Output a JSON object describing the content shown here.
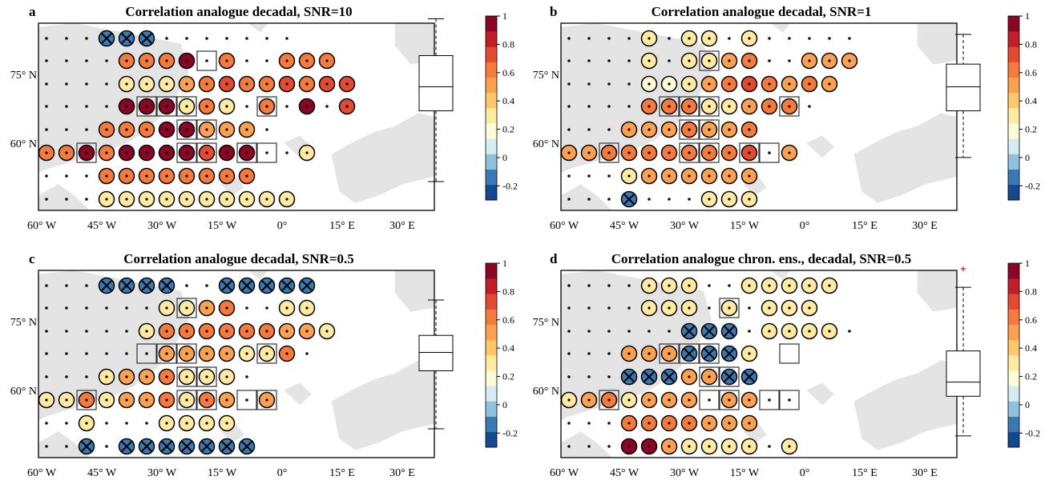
{
  "colors": {
    "land": "#e4e4e4",
    "colormap": [
      "#15488e",
      "#3a7ab3",
      "#8fc1dd",
      "#d7ebf2",
      "#fbfbd6",
      "#feeaa0",
      "#fdc86a",
      "#fca052",
      "#f57a3e",
      "#e24b31",
      "#c11e2a",
      "#8a0526"
    ]
  },
  "xticks": [
    "60° W",
    "45° W",
    "30° W",
    "15° W",
    "0°",
    "15° E",
    "30° E"
  ],
  "yticks": [
    "75° N",
    "60° N"
  ],
  "colorbar": {
    "ticks": [
      "1",
      "0.8",
      "0.6",
      "0.4",
      "0.2",
      "0",
      "-0.2"
    ],
    "range": [
      -0.3,
      1
    ]
  },
  "chart_data": [
    {
      "type": "heatmap",
      "panel": "a",
      "title": "Correlation analogue decadal, SNR=10",
      "grid": [
        "...xxx.......",
        "....5557.5..555",
        "....333456556566",
        "....777353.5.7.6",
        "...55577444.",
        "55758877677..3",
        "...55555555",
        "...3333333333"
      ],
      "boxed": [
        [
          1,
          8
        ],
        [
          3,
          5
        ],
        [
          3,
          6
        ],
        [
          3,
          7
        ],
        [
          3,
          11
        ],
        [
          4,
          7
        ],
        [
          4,
          8
        ],
        [
          5,
          2
        ],
        [
          5,
          7
        ],
        [
          5,
          8
        ],
        [
          5,
          10
        ],
        [
          5,
          11
        ]
      ],
      "boxplot": {
        "min": -0.17,
        "q1": 0.33,
        "median": 0.5,
        "q3": 0.72,
        "max": 0.98,
        "outliers": []
      }
    },
    {
      "type": "heatmap",
      "panel": "b",
      "title": "Correlation analogue decadal, SNR=1",
      "grid": [
        "....3.33.3.....",
        "....3.3345..444",
        "....2234565454",
        "....55533455.",
        "...4445445",
        "4455555556.4",
        "...3444444",
        "...x...333"
      ],
      "boxed": [
        [
          1,
          7
        ],
        [
          3,
          5
        ],
        [
          3,
          6
        ],
        [
          3,
          7
        ],
        [
          3,
          11
        ],
        [
          4,
          6
        ],
        [
          4,
          7
        ],
        [
          5,
          2
        ],
        [
          5,
          6
        ],
        [
          5,
          7
        ],
        [
          5,
          9
        ],
        [
          5,
          10
        ]
      ],
      "boxplot": {
        "min": 0.0,
        "q1": 0.33,
        "median": 0.5,
        "q3": 0.66,
        "max": 0.87,
        "outliers": []
      }
    },
    {
      "type": "heatmap",
      "panel": "c",
      "title": "Correlation analogue decadal, SNR=0.5",
      "grid": [
        "...xxxx..xxxxx",
        "......3345..33",
        ".....3555555443",
        "......4444335.",
        "...3445333.",
        "3353445354.4",
        "..3...3333",
        "..x.xxxxxxx"
      ],
      "boxed": [
        [
          1,
          7
        ],
        [
          3,
          5
        ],
        [
          3,
          6
        ],
        [
          3,
          7
        ],
        [
          3,
          11
        ],
        [
          4,
          7
        ],
        [
          4,
          8
        ],
        [
          5,
          2
        ],
        [
          5,
          7
        ],
        [
          5,
          8
        ],
        [
          5,
          10
        ],
        [
          5,
          11
        ]
      ],
      "boxplot": {
        "min": -0.17,
        "q1": 0.24,
        "median": 0.37,
        "q3": 0.49,
        "max": 0.74,
        "outliers": []
      }
    },
    {
      "type": "heatmap",
      "panel": "d",
      "title": "Correlation analogue chron. ens., decadal, SNR=0.5",
      "grid": [
        "....333..33333",
        "....333.3.333",
        "......xxx.3333.",
        "...444xxx3",
        "...xxx44xx",
        "3453444.44..",
        "...5555444",
        "...7743333.3"
      ],
      "boxed": [
        [
          1,
          8
        ],
        [
          3,
          5
        ],
        [
          3,
          6
        ],
        [
          3,
          7
        ],
        [
          3,
          11
        ],
        [
          4,
          7
        ],
        [
          4,
          8
        ],
        [
          5,
          2
        ],
        [
          5,
          7
        ],
        [
          5,
          8
        ],
        [
          5,
          10
        ],
        [
          5,
          11
        ]
      ],
      "boxplot": {
        "min": -0.22,
        "q1": 0.06,
        "median": 0.16,
        "q3": 0.38,
        "max": 0.83,
        "outliers": [
          0.96
        ]
      }
    }
  ]
}
